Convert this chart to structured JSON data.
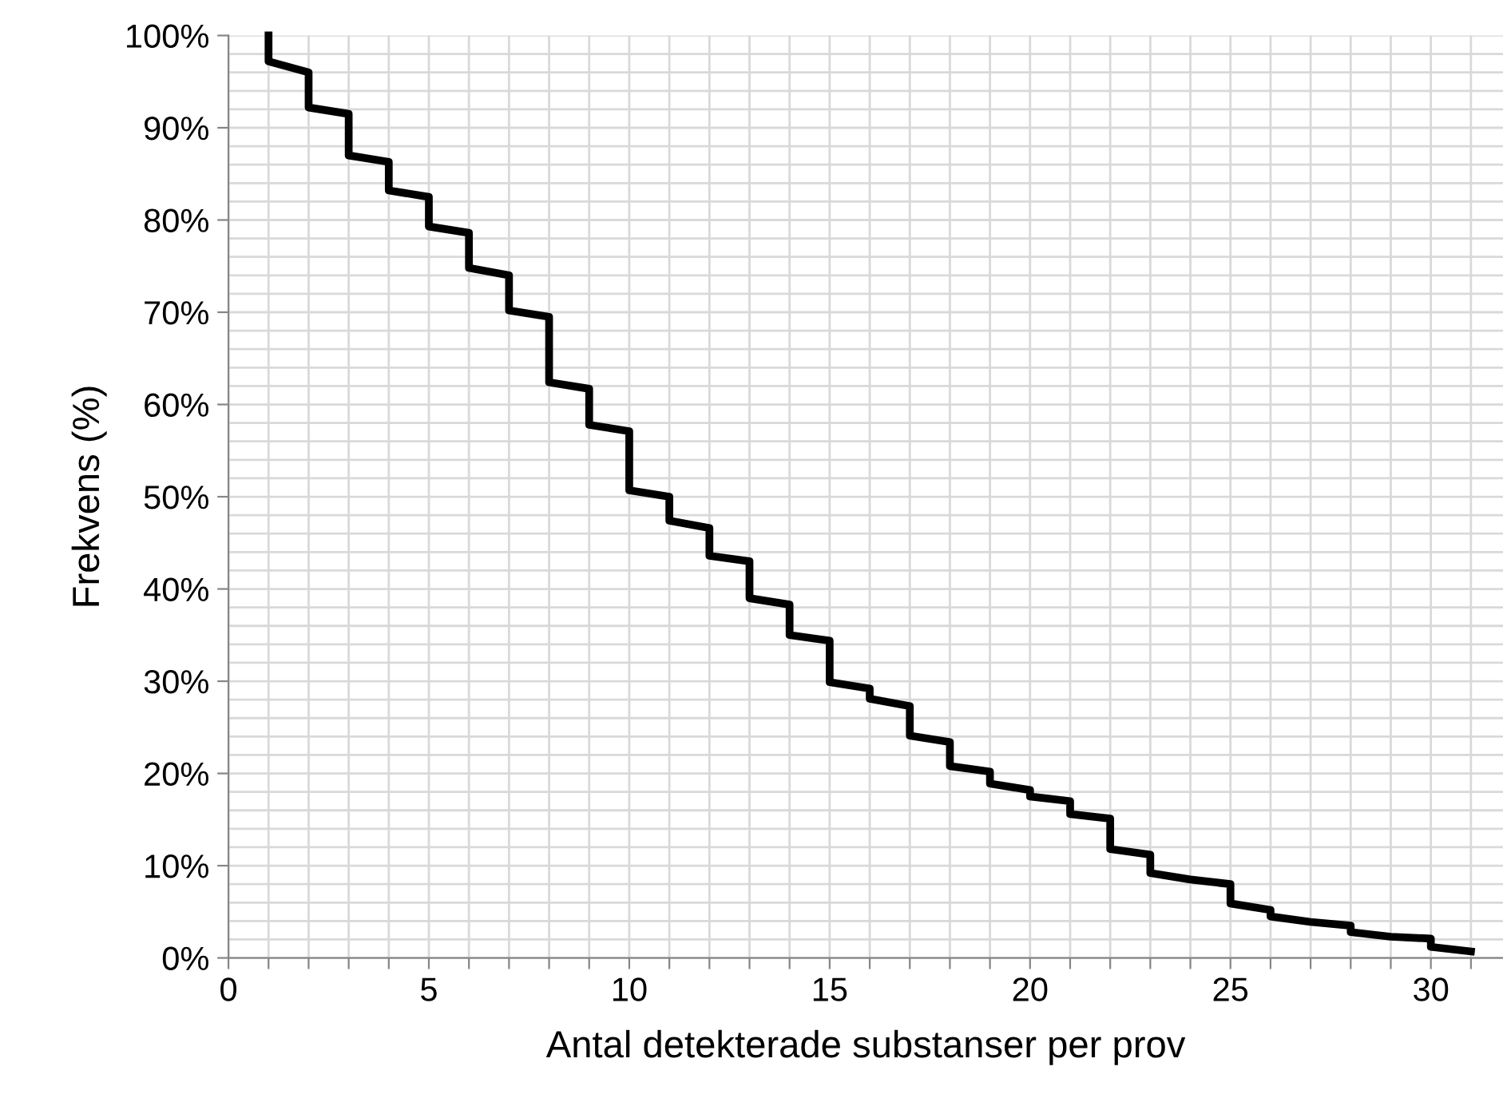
{
  "chart_data": {
    "type": "line",
    "xlabel": "Antal detekterade substanser per prov",
    "ylabel": "Frekvens (%)",
    "series": [
      {
        "color": "#000000",
        "x": [
          1,
          1,
          2,
          2,
          3,
          3,
          4,
          4,
          5,
          5,
          6,
          6,
          7,
          7,
          8,
          8,
          9,
          9,
          10,
          10,
          11,
          11,
          12,
          12,
          13,
          13,
          14,
          14,
          15,
          15,
          16,
          16,
          17,
          17,
          18,
          18,
          19,
          19,
          20,
          20,
          21,
          21,
          22,
          22,
          23,
          23,
          24,
          25,
          25,
          26,
          26,
          27,
          28,
          28,
          29,
          30,
          30,
          31
        ],
        "values": [
          100,
          97.2,
          96,
          92.2,
          91.5,
          87,
          86.3,
          83.2,
          82.5,
          79.3,
          78.6,
          74.8,
          74,
          70.2,
          69.5,
          62.4,
          61.7,
          57.8,
          57.1,
          50.7,
          50,
          47.4,
          46.6,
          43.6,
          43,
          39,
          38.3,
          35,
          34.4,
          29.9,
          29.2,
          28.1,
          27.3,
          24.1,
          23.4,
          20.8,
          20.2,
          18.9,
          18.2,
          17.5,
          17,
          15.6,
          15.1,
          11.8,
          11.2,
          9.2,
          8.5,
          8,
          5.9,
          5.2,
          4.5,
          3.9,
          3.5,
          2.8,
          2.3,
          2.1,
          1.2,
          0.7
        ]
      }
    ],
    "xlim": [
      0,
      31.8
    ],
    "ylim": [
      0,
      100
    ],
    "xticks": [
      0,
      {
        "value": 1,
        "label": null
      },
      {
        "value": 2,
        "label": null
      },
      {
        "value": 3,
        "label": null
      },
      {
        "value": 4,
        "label": null
      },
      5,
      {
        "value": 6,
        "label": null
      },
      {
        "value": 7,
        "label": null
      },
      {
        "value": 8,
        "label": null
      },
      {
        "value": 9,
        "label": null
      },
      10,
      {
        "value": 11,
        "label": null
      },
      {
        "value": 12,
        "label": null
      },
      {
        "value": 13,
        "label": null
      },
      {
        "value": 14,
        "label": null
      },
      15,
      {
        "value": 16,
        "label": null
      },
      {
        "value": 17,
        "label": null
      },
      {
        "value": 18,
        "label": null
      },
      {
        "value": 19,
        "label": null
      },
      20,
      {
        "value": 21,
        "label": null
      },
      {
        "value": 22,
        "label": null
      },
      {
        "value": 23,
        "label": null
      },
      {
        "value": 24,
        "label": null
      },
      25,
      {
        "value": 26,
        "label": null
      },
      {
        "value": 27,
        "label": null
      },
      {
        "value": 28,
        "label": null
      },
      {
        "value": 29,
        "label": null
      },
      30,
      {
        "value": 31,
        "label": null
      }
    ],
    "yticks": [
      {
        "value": 0,
        "label": "0%"
      },
      {
        "value": 10,
        "label": "10%"
      },
      {
        "value": 20,
        "label": "20%"
      },
      {
        "value": 30,
        "label": "30%"
      },
      {
        "value": 40,
        "label": "40%"
      },
      {
        "value": 50,
        "label": "50%"
      },
      {
        "value": 60,
        "label": "60%"
      },
      {
        "value": 70,
        "label": "70%"
      },
      {
        "value": 80,
        "label": "80%"
      },
      {
        "value": 90,
        "label": "90%"
      },
      {
        "value": 100,
        "label": "100%"
      }
    ],
    "grid": true,
    "marker": "none",
    "line_style": "solid"
  }
}
